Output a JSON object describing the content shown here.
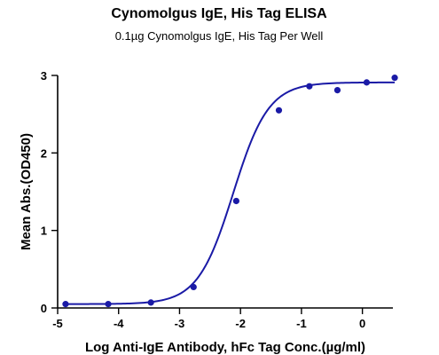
{
  "chart_data": {
    "type": "scatter",
    "title": "Cynomolgus IgE, His Tag ELISA",
    "subtitle": "0.1µg Cynomolgus IgE, His Tag Per Well",
    "xlabel": "Log Anti-IgE Antibody, hFc Tag Conc.(µg/ml)",
    "ylabel": "Mean Abs.(OD450)",
    "xlim": [
      -5,
      0.5
    ],
    "ylim": [
      0,
      3
    ],
    "x_ticks": [
      -5,
      -4,
      -3,
      -2,
      -1,
      0
    ],
    "y_ticks": [
      0,
      1,
      2,
      3
    ],
    "grid": false,
    "color": "#1a1aa6",
    "series": [
      {
        "x": [
          -4.87,
          -4.17,
          -3.47,
          -2.77,
          -2.07,
          -1.37,
          -0.87,
          -0.41,
          0.07,
          0.53
        ],
        "y": [
          0.05,
          0.05,
          0.07,
          0.27,
          1.38,
          2.55,
          2.86,
          2.81,
          2.91,
          2.97
        ]
      }
    ],
    "fit": {
      "model": "4PL",
      "bottom": 0.05,
      "top": 2.91,
      "logEC50": -2.12,
      "hill": 1.5
    }
  }
}
